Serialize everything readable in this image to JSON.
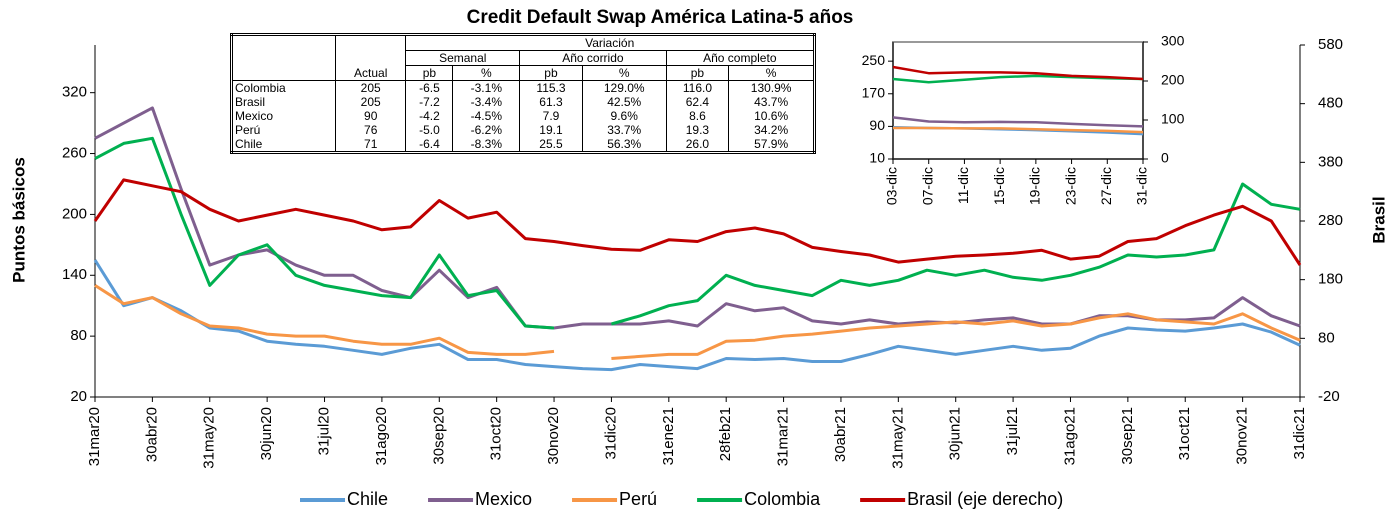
{
  "chart_data": [
    {
      "type": "line",
      "title": "Credit Default Swap América Latina-5 años",
      "ylabel": "Puntos básicos",
      "y2label": "Brasil",
      "legend": "bottom",
      "categories": [
        "31mar20",
        null,
        "30abr20",
        null,
        "31may20",
        null,
        "30jun20",
        null,
        "31jul20",
        null,
        "31ago20",
        null,
        "30sep20",
        null,
        "31oct20",
        null,
        "30nov20",
        null,
        "31dic20",
        null,
        "31ene21",
        null,
        "28feb21",
        null,
        "31mar21",
        null,
        "30abr21",
        null,
        "31may21",
        null,
        "30jun21",
        null,
        "31jul21",
        null,
        "31ago21",
        null,
        "30sep21",
        null,
        "31oct21",
        null,
        "30nov21",
        null,
        "31dic21"
      ],
      "ylim": [
        20,
        367
      ],
      "yticks": [
        20,
        80,
        140,
        200,
        260,
        320
      ],
      "y2lim": [
        -20,
        580
      ],
      "y2ticks": [
        -20,
        80,
        180,
        280,
        380,
        480,
        580
      ],
      "series": [
        {
          "name": "Chile",
          "color": "#5b9bd5",
          "values": [
            155,
            110,
            118,
            105,
            88,
            85,
            75,
            72,
            70,
            66,
            62,
            68,
            72,
            57,
            57,
            52,
            50,
            48,
            47,
            52,
            50,
            48,
            58,
            57,
            58,
            55,
            55,
            62,
            70,
            66,
            62,
            66,
            70,
            66,
            68,
            80,
            88,
            86,
            85,
            88,
            92,
            84,
            71
          ]
        },
        {
          "name": "Mexico",
          "color": "#7f5f8f",
          "values": [
            275,
            290,
            305,
            225,
            150,
            160,
            165,
            150,
            140,
            140,
            125,
            118,
            145,
            118,
            128,
            90,
            88,
            92,
            92,
            92,
            95,
            90,
            112,
            105,
            108,
            95,
            92,
            96,
            92,
            94,
            93,
            96,
            98,
            92,
            92,
            100,
            100,
            96,
            96,
            98,
            118,
            100,
            90
          ]
        },
        {
          "name": "Perú",
          "color": "#f79646",
          "values": [
            130,
            112,
            118,
            102,
            90,
            88,
            82,
            80,
            80,
            75,
            72,
            72,
            78,
            64,
            62,
            62,
            65,
            null,
            58,
            60,
            62,
            62,
            75,
            76,
            80,
            82,
            85,
            88,
            90,
            92,
            94,
            92,
            95,
            90,
            92,
            98,
            102,
            96,
            94,
            92,
            102,
            88,
            76
          ]
        },
        {
          "name": "Colombia",
          "color": "#00b050",
          "values": [
            255,
            270,
            275,
            200,
            130,
            160,
            170,
            140,
            130,
            125,
            120,
            118,
            160,
            120,
            125,
            90,
            88,
            null,
            92,
            100,
            110,
            115,
            140,
            130,
            125,
            120,
            135,
            130,
            135,
            145,
            140,
            145,
            138,
            135,
            140,
            148,
            160,
            158,
            160,
            165,
            230,
            210,
            205
          ]
        },
        {
          "name": "Brasil (eje derecho)",
          "color": "#c00000",
          "axis": "y2",
          "values": [
            280,
            350,
            340,
            330,
            300,
            280,
            290,
            300,
            290,
            280,
            265,
            270,
            315,
            285,
            295,
            250,
            245,
            238,
            232,
            230,
            248,
            245,
            262,
            268,
            258,
            235,
            228,
            222,
            210,
            215,
            220,
            222,
            225,
            230,
            215,
            220,
            245,
            250,
            272,
            290,
            305,
            280,
            205
          ]
        }
      ]
    },
    {
      "type": "line",
      "categories": [
        "03-dic",
        "07-dic",
        "11-dic",
        "15-dic",
        "19-dic",
        "23-dic",
        "27-dic",
        "31-dic"
      ],
      "ylim": [
        10,
        297
      ],
      "yticks": [
        10,
        90,
        170,
        250
      ],
      "y2lim": [
        0,
        300
      ],
      "y2ticks": [
        0,
        100,
        200,
        300
      ],
      "series": [
        {
          "color": "#5b9bd5",
          "values": [
            88,
            86,
            85,
            83,
            81,
            78,
            75,
            71
          ]
        },
        {
          "color": "#7f5f8f",
          "values": [
            112,
            102,
            100,
            101,
            100,
            96,
            93,
            90
          ]
        },
        {
          "color": "#f79646",
          "values": [
            86,
            86,
            85,
            85,
            83,
            81,
            79,
            76
          ]
        },
        {
          "color": "#00b050",
          "axis": "y2",
          "values": [
            205,
            197,
            203,
            210,
            213,
            210,
            207,
            205
          ]
        },
        {
          "color": "#c00000",
          "axis": "y2",
          "values": [
            236,
            220,
            222,
            222,
            220,
            213,
            210,
            205
          ]
        }
      ]
    }
  ],
  "table": {
    "group": "Variación",
    "subgroups": [
      "Semanal",
      "Año corrido",
      "Año completo"
    ],
    "columns": [
      "Actual",
      "pb",
      "%",
      "pb",
      "%",
      "pb",
      "%"
    ],
    "rows": [
      [
        "Colombia",
        "205",
        "-6.5",
        "-3.1%",
        "115.3",
        "129.0%",
        "116.0",
        "130.9%"
      ],
      [
        "Brasil",
        "205",
        "-7.2",
        "-3.4%",
        "61.3",
        "42.5%",
        "62.4",
        "43.7%"
      ],
      [
        "Mexico",
        "90",
        "-4.2",
        "-4.5%",
        "7.9",
        "9.6%",
        "8.6",
        "10.6%"
      ],
      [
        "Perú",
        "76",
        "-5.0",
        "-6.2%",
        "19.1",
        "33.7%",
        "19.3",
        "34.2%"
      ],
      [
        "Chile",
        "71",
        "-6.4",
        "-8.3%",
        "25.5",
        "56.3%",
        "26.0",
        "57.9%"
      ]
    ]
  }
}
